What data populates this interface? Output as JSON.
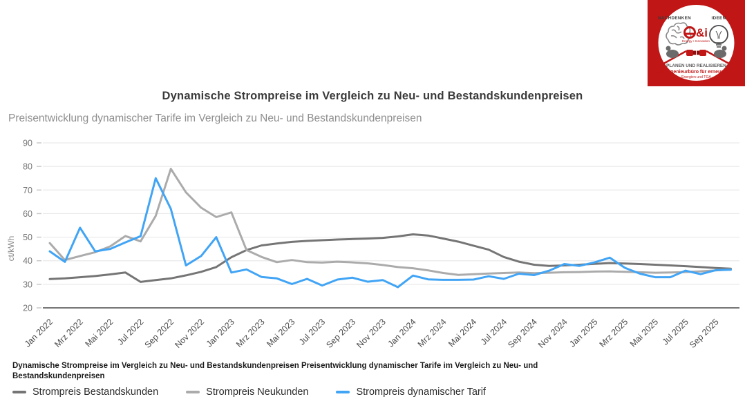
{
  "logo": {
    "top_left_text": "NACHDENKEN",
    "top_right_text": "IDEEN",
    "center_mark": "e&i",
    "center_sub": "Energy • Innovation",
    "bottom_line1": "PLANEN UND REALISIEREN",
    "bottom_line2_bold": "E&I Ingenieurbüro",
    "bottom_line2_small": "für erneuerbare",
    "bottom_line3": "Energien und TGA",
    "colors": {
      "frame": "#c01616",
      "circle": "#ffffff",
      "accent_red": "#c01616",
      "gray": "#6b6b6b",
      "dark_text": "#3a3a3a"
    }
  },
  "chart": {
    "title": "Dynamische Strompreise im Vergleich zu Neu- und Bestandskundenpreisen",
    "subtitle": "Preisentwicklung dynamischer Tarife im Vergleich zu Neu- und Bestandskundenpreisen",
    "caption": "Dynamische Strompreise im Vergleich zu Neu- und Bestandskundenpreisen Preisentwicklung dynamischer Tarife im Vergleich zu Neu- und Bestandskundenpreisen"
  },
  "chart_data": {
    "type": "line",
    "title": "Dynamische Strompreise im Vergleich zu Neu- und Bestandskundenpreisen",
    "subtitle": "Preisentwicklung dynamischer Tarife im Vergleich zu Neu- und Bestandskundenpreisen",
    "ylabel": "ct/kWh",
    "ylim": [
      20,
      90
    ],
    "yticks": [
      90,
      80,
      70,
      60,
      50,
      40,
      30,
      20
    ],
    "grid": true,
    "legend_position": "bottom",
    "x": [
      "Jan 2022",
      "Feb 2022",
      "Mrz 2022",
      "Apr 2022",
      "Mai 2022",
      "Jun 2022",
      "Jul 2022",
      "Aug 2022",
      "Sep 2022",
      "Okt 2022",
      "Nov 2022",
      "Dez 2022",
      "Jan 2023",
      "Feb 2023",
      "Mrz 2023",
      "Apr 2023",
      "Mai 2023",
      "Jun 2023",
      "Jul 2023",
      "Aug 2023",
      "Sep 2023",
      "Okt 2023",
      "Nov 2023",
      "Dez 2023",
      "Jan 2024",
      "Feb 2024",
      "Mrz 2024",
      "Apr 2024",
      "Mai 2024",
      "Jun 2024",
      "Jul 2024",
      "Aug 2024",
      "Sep 2024",
      "Okt 2024",
      "Nov 2024",
      "Dez 2024",
      "Jan 2025",
      "Feb 2025",
      "Mrz 2025",
      "Apr 2025",
      "Mai 2025",
      "Jun 2025",
      "Jul 2025",
      "Aug 2025",
      "Sep 2025",
      "Okt 2025"
    ],
    "x_tick_labels": [
      "Jan 2022",
      "Mrz 2022",
      "Mai 2022",
      "Jul 2022",
      "Sep 2022",
      "Nov 2022",
      "Jan 2023",
      "Mrz 2023",
      "Mai 2023",
      "Jul 2023",
      "Sep 2023",
      "Nov 2023",
      "Jan 2024",
      "Mrz 2024",
      "Mai 2024",
      "Jul 2024",
      "Sep 2024",
      "Nov 2024",
      "Jan 2025",
      "Mrz 2025",
      "Mai 2025",
      "Jul 2025",
      "Sep 2025"
    ],
    "x_tick_every": 2,
    "series": [
      {
        "name": "Strompreis Bestandskunden",
        "color": "#757575",
        "values": [
          32.2,
          32.5,
          33.0,
          33.5,
          34.2,
          35.0,
          31.0,
          31.8,
          32.5,
          33.8,
          35.3,
          37.3,
          41.5,
          44.5,
          46.5,
          47.3,
          48.0,
          48.4,
          48.7,
          49.0,
          49.2,
          49.4,
          49.7,
          50.3,
          51.2,
          50.7,
          49.4,
          48.1,
          46.4,
          44.7,
          41.6,
          39.6,
          38.3,
          37.8,
          38.0,
          38.3,
          38.7,
          39.0,
          38.8,
          38.6,
          38.3,
          38.0,
          37.7,
          37.3,
          36.9,
          36.6
        ]
      },
      {
        "name": "Strompreis Neukunden",
        "color": "#ababab",
        "values": [
          47.5,
          40.3,
          42.0,
          43.6,
          46.1,
          50.5,
          48.2,
          59.0,
          79.0,
          69.0,
          62.5,
          58.5,
          60.5,
          44.5,
          41.6,
          39.4,
          40.3,
          39.4,
          39.2,
          39.6,
          39.3,
          38.9,
          38.2,
          37.3,
          36.8,
          35.9,
          34.8,
          34.0,
          34.3,
          34.6,
          34.8,
          35.0,
          34.7,
          34.9,
          35.1,
          35.2,
          35.4,
          35.5,
          35.3,
          35.1,
          34.9,
          35.0,
          35.2,
          35.5,
          35.9,
          36.3
        ]
      },
      {
        "name": "Strompreis dynamischer Tarif",
        "color": "#41a4f5",
        "values": [
          44.0,
          39.5,
          54.0,
          44.0,
          45.0,
          47.8,
          50.4,
          75.0,
          62.0,
          38.0,
          42.0,
          50.0,
          35.0,
          36.3,
          33.1,
          32.5,
          30.1,
          32.3,
          29.5,
          32.0,
          32.8,
          31.1,
          31.8,
          28.8,
          33.7,
          32.1,
          31.9,
          31.9,
          32.0,
          33.4,
          32.3,
          34.5,
          33.9,
          35.8,
          38.6,
          37.8,
          39.3,
          41.3,
          37.0,
          34.5,
          33.0,
          33.0,
          35.8,
          34.3,
          36.0,
          36.2
        ]
      }
    ]
  },
  "style": {
    "grid_color": "#e9e9e9",
    "axis_color": "#757575",
    "tick_color": "#c9c9c9",
    "y_tick_label_color": "#757575",
    "x_tick_label_color": "#4c4c4c",
    "ylabel_color": "#8a8a8a"
  }
}
